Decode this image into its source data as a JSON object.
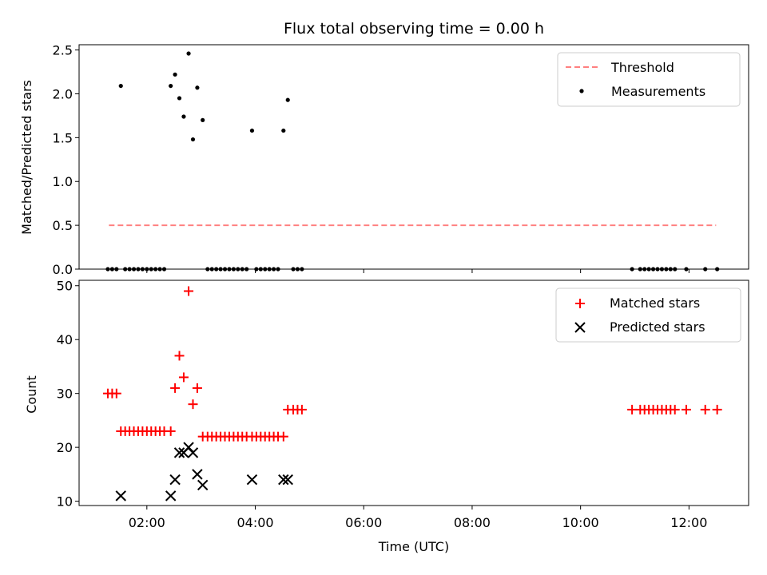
{
  "chart_data": [
    {
      "type": "scatter",
      "title": "Flux total observing time = 0.00 h",
      "ylabel": "Matched/Predicted stars",
      "xlabel": "",
      "xlim_hours": [
        0.75,
        13.1
      ],
      "ylim": [
        0,
        2.56
      ],
      "yticks": [
        0.0,
        0.5,
        1.0,
        1.5,
        2.0,
        2.5
      ],
      "ytick_labels": [
        "0.0",
        "0.5",
        "1.0",
        "1.5",
        "2.0",
        "2.5"
      ],
      "xticks_hours": [
        2,
        4,
        6,
        8,
        10,
        12
      ],
      "legend_position": "top-right",
      "colors": {
        "threshold": "#ff8080",
        "measurements": "#000000"
      },
      "threshold": {
        "name": "Threshold",
        "value": 0.5,
        "x_range_hours": [
          1.3,
          12.5
        ]
      },
      "measurements": {
        "name": "Measurements",
        "points": [
          [
            1.28,
            0
          ],
          [
            1.36,
            0
          ],
          [
            1.44,
            0
          ],
          [
            1.52,
            2.09
          ],
          [
            1.6,
            0
          ],
          [
            1.68,
            0
          ],
          [
            1.76,
            0
          ],
          [
            1.84,
            0
          ],
          [
            1.92,
            0
          ],
          [
            2.0,
            0
          ],
          [
            2.08,
            0
          ],
          [
            2.16,
            0
          ],
          [
            2.24,
            0
          ],
          [
            2.32,
            0
          ],
          [
            2.44,
            2.09
          ],
          [
            2.52,
            2.22
          ],
          [
            2.6,
            1.95
          ],
          [
            2.68,
            1.74
          ],
          [
            2.77,
            2.46
          ],
          [
            2.85,
            1.48
          ],
          [
            2.93,
            2.07
          ],
          [
            3.03,
            1.7
          ],
          [
            3.12,
            0
          ],
          [
            3.2,
            0
          ],
          [
            3.28,
            0
          ],
          [
            3.36,
            0
          ],
          [
            3.44,
            0
          ],
          [
            3.52,
            0
          ],
          [
            3.6,
            0
          ],
          [
            3.68,
            0
          ],
          [
            3.76,
            0
          ],
          [
            3.84,
            0
          ],
          [
            3.94,
            1.58
          ],
          [
            4.02,
            0
          ],
          [
            4.1,
            0
          ],
          [
            4.18,
            0
          ],
          [
            4.26,
            0
          ],
          [
            4.34,
            0
          ],
          [
            4.42,
            0
          ],
          [
            4.52,
            1.58
          ],
          [
            4.6,
            1.93
          ],
          [
            4.7,
            0
          ],
          [
            4.78,
            0
          ],
          [
            4.86,
            0
          ],
          [
            10.95,
            0
          ],
          [
            11.1,
            0
          ],
          [
            11.18,
            0
          ],
          [
            11.26,
            0
          ],
          [
            11.34,
            0
          ],
          [
            11.42,
            0
          ],
          [
            11.5,
            0
          ],
          [
            11.58,
            0
          ],
          [
            11.66,
            0
          ],
          [
            11.74,
            0
          ],
          [
            11.95,
            0
          ],
          [
            12.3,
            0
          ],
          [
            12.52,
            0
          ]
        ]
      }
    },
    {
      "type": "scatter",
      "title": "",
      "ylabel": "Count",
      "xlabel": "Time (UTC)",
      "xlim_hours": [
        0.75,
        13.1
      ],
      "ylim": [
        9.2,
        51
      ],
      "yticks": [
        10,
        20,
        30,
        40,
        50
      ],
      "ytick_labels": [
        "10",
        "20",
        "30",
        "40",
        "50"
      ],
      "xticks_hours": [
        2,
        4,
        6,
        8,
        10,
        12
      ],
      "xtick_labels": [
        "02:00",
        "04:00",
        "06:00",
        "08:00",
        "10:00",
        "12:00"
      ],
      "legend_position": "top-right",
      "colors": {
        "matched": "#ff0000",
        "predicted": "#000000"
      },
      "series": [
        {
          "name": "Matched stars",
          "marker": "plus",
          "points": [
            [
              1.28,
              30
            ],
            [
              1.36,
              30
            ],
            [
              1.44,
              30
            ],
            [
              1.52,
              23
            ],
            [
              1.6,
              23
            ],
            [
              1.68,
              23
            ],
            [
              1.76,
              23
            ],
            [
              1.84,
              23
            ],
            [
              1.92,
              23
            ],
            [
              2.0,
              23
            ],
            [
              2.08,
              23
            ],
            [
              2.16,
              23
            ],
            [
              2.24,
              23
            ],
            [
              2.32,
              23
            ],
            [
              2.44,
              23
            ],
            [
              2.52,
              31
            ],
            [
              2.6,
              37
            ],
            [
              2.68,
              33
            ],
            [
              2.77,
              49
            ],
            [
              2.85,
              28
            ],
            [
              2.93,
              31
            ],
            [
              3.03,
              22
            ],
            [
              3.12,
              22
            ],
            [
              3.2,
              22
            ],
            [
              3.28,
              22
            ],
            [
              3.36,
              22
            ],
            [
              3.44,
              22
            ],
            [
              3.52,
              22
            ],
            [
              3.6,
              22
            ],
            [
              3.68,
              22
            ],
            [
              3.76,
              22
            ],
            [
              3.84,
              22
            ],
            [
              3.94,
              22
            ],
            [
              4.02,
              22
            ],
            [
              4.1,
              22
            ],
            [
              4.18,
              22
            ],
            [
              4.26,
              22
            ],
            [
              4.34,
              22
            ],
            [
              4.42,
              22
            ],
            [
              4.52,
              22
            ],
            [
              4.6,
              27
            ],
            [
              4.7,
              27
            ],
            [
              4.78,
              27
            ],
            [
              4.86,
              27
            ],
            [
              10.95,
              27
            ],
            [
              11.1,
              27
            ],
            [
              11.18,
              27
            ],
            [
              11.26,
              27
            ],
            [
              11.34,
              27
            ],
            [
              11.42,
              27
            ],
            [
              11.5,
              27
            ],
            [
              11.58,
              27
            ],
            [
              11.66,
              27
            ],
            [
              11.74,
              27
            ],
            [
              11.95,
              27
            ],
            [
              12.3,
              27
            ],
            [
              12.52,
              27
            ]
          ]
        },
        {
          "name": "Predicted stars",
          "marker": "x",
          "points": [
            [
              1.52,
              11
            ],
            [
              2.44,
              11
            ],
            [
              2.52,
              14
            ],
            [
              2.6,
              19
            ],
            [
              2.68,
              19
            ],
            [
              2.77,
              20
            ],
            [
              2.85,
              19
            ],
            [
              2.93,
              15
            ],
            [
              3.03,
              13
            ],
            [
              3.94,
              14
            ],
            [
              4.52,
              14
            ],
            [
              4.6,
              14
            ]
          ]
        }
      ]
    }
  ]
}
